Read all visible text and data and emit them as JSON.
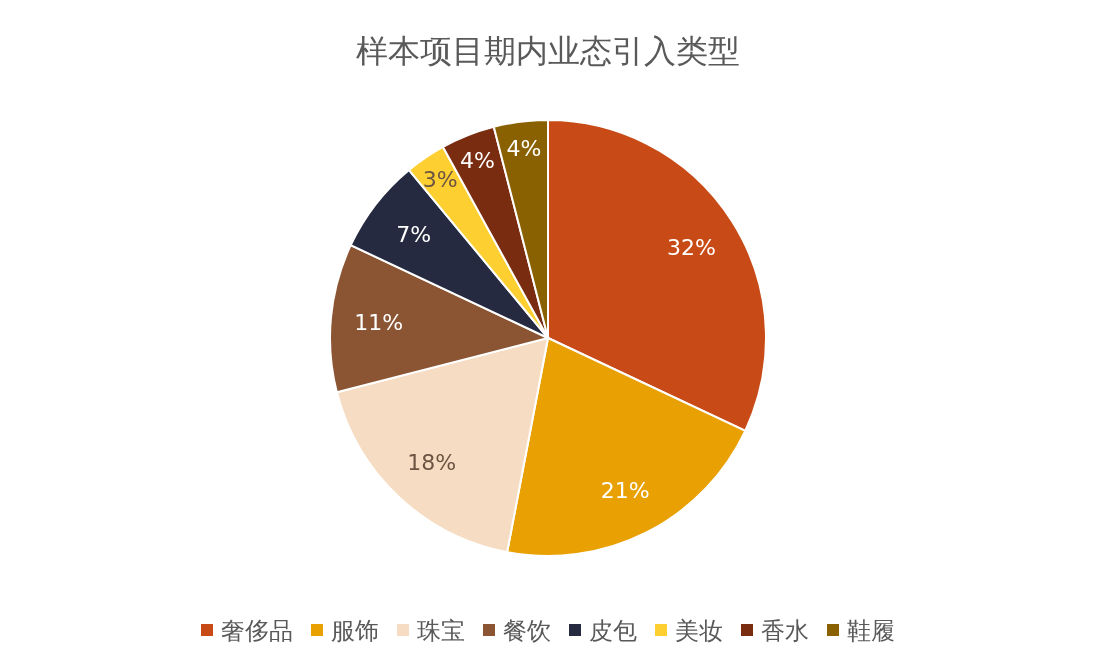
{
  "chart_data": {
    "type": "pie",
    "title": "样本项目期内业态引入类型",
    "categories": [
      "奢侈品",
      "服饰",
      "珠宝",
      "餐饮",
      "皮包",
      "美妆",
      "香水",
      "鞋履"
    ],
    "values": [
      32,
      21,
      18,
      11,
      7,
      3,
      4,
      4
    ],
    "colors": [
      "#c84b17",
      "#e8a003",
      "#f6dcc2",
      "#8b5534",
      "#262a40",
      "#fdcf31",
      "#7a2c10",
      "#8a6100"
    ],
    "value_labels": [
      "32%",
      "21%",
      "18%",
      "11%",
      "7%",
      "3%",
      "4%",
      "4%"
    ],
    "legend": "bottom"
  }
}
